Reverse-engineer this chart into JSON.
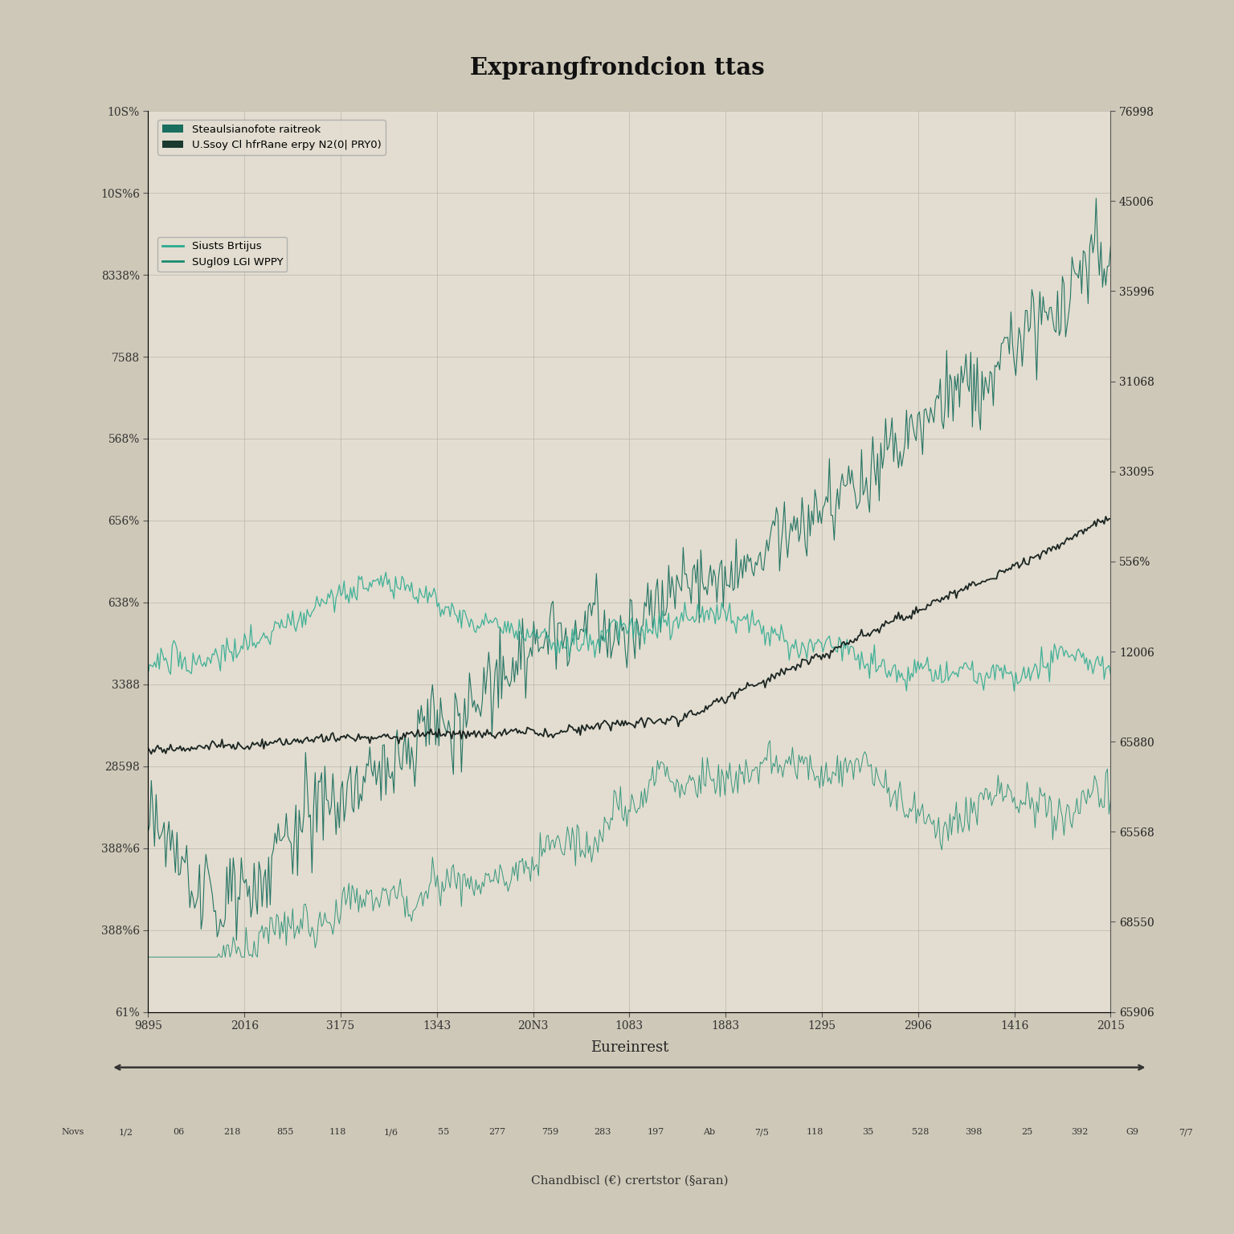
{
  "title": "Exprangfrondcion ttas",
  "xlabel": "Eureinrest",
  "background_color": "#cec8b8",
  "plot_bg_color": "#e2ddd0",
  "grid_color": "#b8b4a8",
  "line1_color": "#1a6e5e",
  "line2_color": "#151f1c",
  "line3_color": "#2aaa90",
  "line4_color": "#1a8a70",
  "n_points": 600,
  "seed": 17,
  "left_ticks": [
    "61%",
    "388%6",
    "388%6",
    "28598",
    "3388",
    "638%",
    "656%",
    "568%",
    "7588",
    "8338%",
    "10S%6",
    "10S%"
  ],
  "right_ticks": [
    "65906",
    "68550",
    "65568",
    "65880",
    "12006",
    "556%",
    "33095",
    "31068",
    "35996",
    "45006",
    "76998"
  ],
  "xtick_labels": [
    "9895",
    "2016",
    "3175",
    "1343",
    "20N3",
    "1083",
    "1883",
    "1295",
    "2906",
    "1416",
    "2015"
  ],
  "legend_entries_patch": [
    "Steaulsianofote raitreok",
    "U.Ssoy Cl hfrRane erpy N2(0| PRY0)"
  ],
  "legend_entries_line": [
    "Siusts Brtijus",
    "SUgl09 LGI WPPY"
  ],
  "bottom_labels": [
    "Novs",
    "1/2",
    "06",
    "218",
    "855",
    "118",
    "1/6",
    "55",
    "277",
    "759",
    "283",
    "197",
    "Ab",
    "7/5",
    "118",
    "35",
    "528",
    "398",
    "25",
    "392",
    "G9",
    "7/7"
  ],
  "bottom_xlabel": "Chandbiscl (€) crertstor (§aran)"
}
